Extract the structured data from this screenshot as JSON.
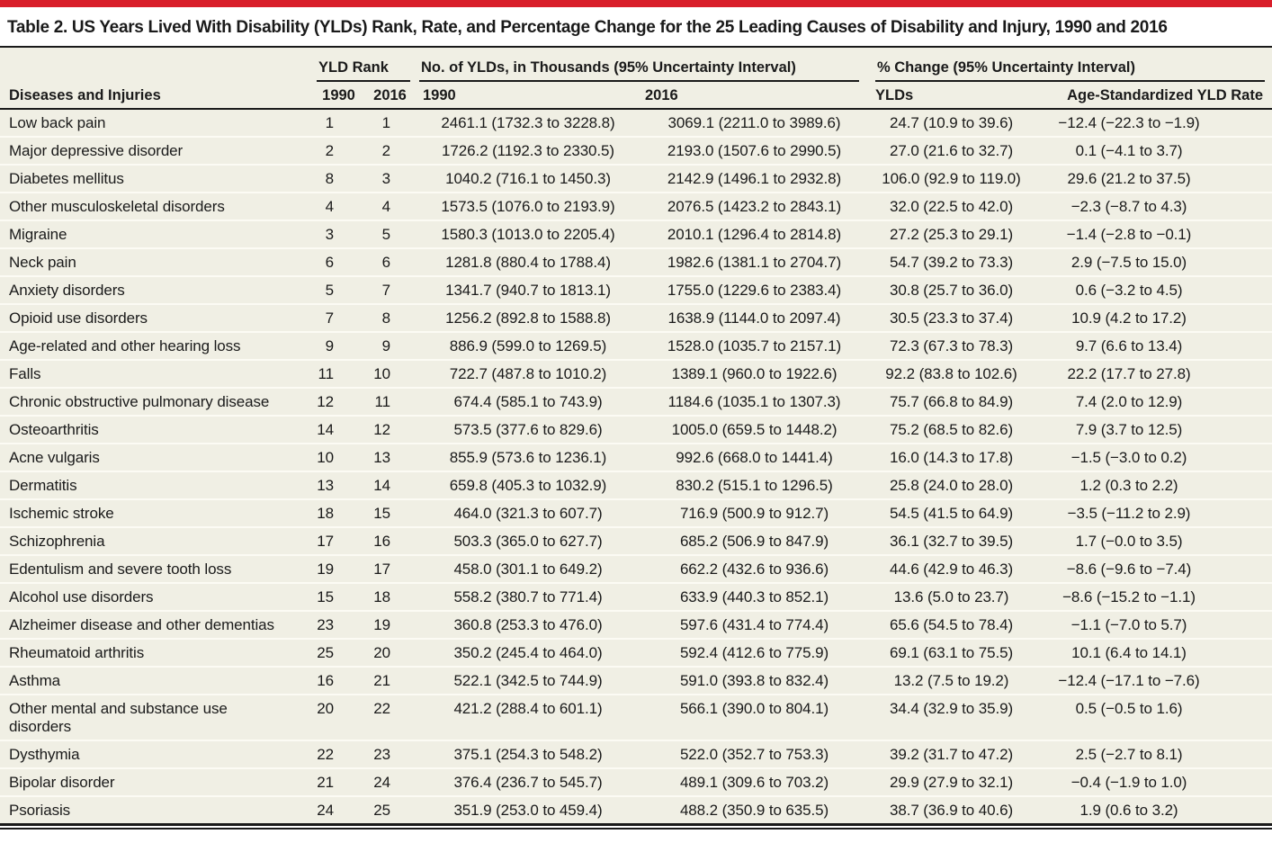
{
  "title": "Table 2. US Years Lived With Disability (YLDs) Rank, Rate, and Percentage Change for the 25 Leading Causes of Disability and Injury, 1990 and 2016",
  "colors": {
    "accent_red": "#d91e2a",
    "table_background": "#f0efe4",
    "rule_black": "#1a1a1a"
  },
  "header": {
    "col_disease": "Diseases and Injuries",
    "group_rank": "YLD Rank",
    "group_ylds": "No. of YLDs, in Thousands (95% Uncertainty Interval)",
    "group_pct": "% Change (95% Uncertainty Interval)",
    "sub_rank_1990": "1990",
    "sub_rank_2016": "2016",
    "sub_ylds_1990": "1990",
    "sub_ylds_2016": "2016",
    "sub_pct_ylds": "YLDs",
    "sub_pct_age": "Age-Standardized YLD Rate"
  },
  "rows": [
    {
      "name": "Low back pain",
      "rank1990": "1",
      "rank2016": "1",
      "ylds1990": "2461.1 (1732.3 to 3228.8)",
      "ylds2016": "3069.1 (2211.0 to 3989.6)",
      "pct_ylds": "24.7 (10.9 to 39.6)",
      "pct_age": "−12.4 (−22.3 to −1.9)"
    },
    {
      "name": "Major depressive disorder",
      "rank1990": "2",
      "rank2016": "2",
      "ylds1990": "1726.2 (1192.3 to 2330.5)",
      "ylds2016": "2193.0 (1507.6 to 2990.5)",
      "pct_ylds": "27.0 (21.6 to 32.7)",
      "pct_age": "0.1 (−4.1 to 3.7)"
    },
    {
      "name": "Diabetes mellitus",
      "rank1990": "8",
      "rank2016": "3",
      "ylds1990": "1040.2 (716.1 to 1450.3)",
      "ylds2016": "2142.9 (1496.1 to 2932.8)",
      "pct_ylds": "106.0 (92.9 to 119.0)",
      "pct_age": "29.6 (21.2 to 37.5)"
    },
    {
      "name": "Other musculoskeletal disorders",
      "rank1990": "4",
      "rank2016": "4",
      "ylds1990": "1573.5 (1076.0 to 2193.9)",
      "ylds2016": "2076.5 (1423.2 to 2843.1)",
      "pct_ylds": "32.0 (22.5 to 42.0)",
      "pct_age": "−2.3 (−8.7 to 4.3)"
    },
    {
      "name": "Migraine",
      "rank1990": "3",
      "rank2016": "5",
      "ylds1990": "1580.3 (1013.0 to 2205.4)",
      "ylds2016": "2010.1 (1296.4 to 2814.8)",
      "pct_ylds": "27.2 (25.3 to 29.1)",
      "pct_age": "−1.4 (−2.8 to −0.1)"
    },
    {
      "name": "Neck pain",
      "rank1990": "6",
      "rank2016": "6",
      "ylds1990": "1281.8 (880.4 to 1788.4)",
      "ylds2016": "1982.6 (1381.1 to 2704.7)",
      "pct_ylds": "54.7 (39.2 to 73.3)",
      "pct_age": "2.9 (−7.5 to 15.0)"
    },
    {
      "name": "Anxiety disorders",
      "rank1990": "5",
      "rank2016": "7",
      "ylds1990": "1341.7 (940.7 to 1813.1)",
      "ylds2016": "1755.0 (1229.6 to 2383.4)",
      "pct_ylds": "30.8 (25.7 to 36.0)",
      "pct_age": "0.6 (−3.2 to 4.5)"
    },
    {
      "name": "Opioid use disorders",
      "rank1990": "7",
      "rank2016": "8",
      "ylds1990": "1256.2 (892.8 to 1588.8)",
      "ylds2016": "1638.9 (1144.0 to 2097.4)",
      "pct_ylds": "30.5 (23.3 to 37.4)",
      "pct_age": "10.9 (4.2 to 17.2)"
    },
    {
      "name": "Age-related and other hearing loss",
      "rank1990": "9",
      "rank2016": "9",
      "ylds1990": "886.9 (599.0 to 1269.5)",
      "ylds2016": "1528.0 (1035.7 to 2157.1)",
      "pct_ylds": "72.3 (67.3 to 78.3)",
      "pct_age": "9.7 (6.6 to 13.4)"
    },
    {
      "name": "Falls",
      "rank1990": "11",
      "rank2016": "10",
      "ylds1990": "722.7 (487.8 to 1010.2)",
      "ylds2016": "1389.1 (960.0 to 1922.6)",
      "pct_ylds": "92.2 (83.8 to 102.6)",
      "pct_age": "22.2 (17.7 to 27.8)"
    },
    {
      "name": "Chronic obstructive pulmonary disease",
      "rank1990": "12",
      "rank2016": "11",
      "ylds1990": "674.4 (585.1 to 743.9)",
      "ylds2016": "1184.6 (1035.1 to 1307.3)",
      "pct_ylds": "75.7 (66.8 to 84.9)",
      "pct_age": "7.4 (2.0 to 12.9)"
    },
    {
      "name": "Osteoarthritis",
      "rank1990": "14",
      "rank2016": "12",
      "ylds1990": "573.5 (377.6 to 829.6)",
      "ylds2016": "1005.0 (659.5 to 1448.2)",
      "pct_ylds": "75.2 (68.5 to 82.6)",
      "pct_age": "7.9 (3.7 to 12.5)"
    },
    {
      "name": "Acne vulgaris",
      "rank1990": "10",
      "rank2016": "13",
      "ylds1990": "855.9 (573.6 to 1236.1)",
      "ylds2016": "992.6 (668.0 to 1441.4)",
      "pct_ylds": "16.0 (14.3 to 17.8)",
      "pct_age": "−1.5 (−3.0 to 0.2)"
    },
    {
      "name": "Dermatitis",
      "rank1990": "13",
      "rank2016": "14",
      "ylds1990": "659.8 (405.3 to 1032.9)",
      "ylds2016": "830.2 (515.1 to 1296.5)",
      "pct_ylds": "25.8 (24.0 to 28.0)",
      "pct_age": "1.2 (0.3 to 2.2)"
    },
    {
      "name": "Ischemic stroke",
      "rank1990": "18",
      "rank2016": "15",
      "ylds1990": "464.0 (321.3 to 607.7)",
      "ylds2016": "716.9 (500.9 to 912.7)",
      "pct_ylds": "54.5 (41.5 to 64.9)",
      "pct_age": "−3.5 (−11.2 to 2.9)"
    },
    {
      "name": "Schizophrenia",
      "rank1990": "17",
      "rank2016": "16",
      "ylds1990": "503.3 (365.0 to 627.7)",
      "ylds2016": "685.2 (506.9 to 847.9)",
      "pct_ylds": "36.1 (32.7 to 39.5)",
      "pct_age": "1.7 (−0.0 to 3.5)"
    },
    {
      "name": "Edentulism and severe tooth loss",
      "rank1990": "19",
      "rank2016": "17",
      "ylds1990": "458.0 (301.1 to 649.2)",
      "ylds2016": "662.2 (432.6 to 936.6)",
      "pct_ylds": "44.6 (42.9 to 46.3)",
      "pct_age": "−8.6 (−9.6 to −7.4)"
    },
    {
      "name": "Alcohol use disorders",
      "rank1990": "15",
      "rank2016": "18",
      "ylds1990": "558.2 (380.7 to 771.4)",
      "ylds2016": "633.9 (440.3 to 852.1)",
      "pct_ylds": "13.6 (5.0 to 23.7)",
      "pct_age": "−8.6 (−15.2 to −1.1)"
    },
    {
      "name": "Alzheimer disease and other dementias",
      "rank1990": "23",
      "rank2016": "19",
      "ylds1990": "360.8 (253.3 to 476.0)",
      "ylds2016": "597.6 (431.4 to 774.4)",
      "pct_ylds": "65.6 (54.5 to 78.4)",
      "pct_age": "−1.1 (−7.0 to 5.7)"
    },
    {
      "name": "Rheumatoid arthritis",
      "rank1990": "25",
      "rank2016": "20",
      "ylds1990": "350.2 (245.4 to 464.0)",
      "ylds2016": "592.4 (412.6 to 775.9)",
      "pct_ylds": "69.1 (63.1 to 75.5)",
      "pct_age": "10.1 (6.4 to 14.1)"
    },
    {
      "name": "Asthma",
      "rank1990": "16",
      "rank2016": "21",
      "ylds1990": "522.1 (342.5 to 744.9)",
      "ylds2016": "591.0 (393.8 to 832.4)",
      "pct_ylds": "13.2 (7.5 to 19.2)",
      "pct_age": "−12.4 (−17.1 to −7.6)"
    },
    {
      "name": "Other mental and substance use disorders",
      "rank1990": "20",
      "rank2016": "22",
      "ylds1990": "421.2 (288.4 to 601.1)",
      "ylds2016": "566.1 (390.0 to 804.1)",
      "pct_ylds": "34.4 (32.9 to 35.9)",
      "pct_age": "0.5 (−0.5 to 1.6)"
    },
    {
      "name": "Dysthymia",
      "rank1990": "22",
      "rank2016": "23",
      "ylds1990": "375.1 (254.3 to 548.2)",
      "ylds2016": "522.0 (352.7 to 753.3)",
      "pct_ylds": "39.2 (31.7 to 47.2)",
      "pct_age": "2.5 (−2.7 to 8.1)"
    },
    {
      "name": "Bipolar disorder",
      "rank1990": "21",
      "rank2016": "24",
      "ylds1990": "376.4 (236.7 to 545.7)",
      "ylds2016": "489.1 (309.6 to 703.2)",
      "pct_ylds": "29.9 (27.9 to 32.1)",
      "pct_age": "−0.4 (−1.9 to 1.0)"
    },
    {
      "name": "Psoriasis",
      "rank1990": "24",
      "rank2016": "25",
      "ylds1990": "351.9 (253.0 to 459.4)",
      "ylds2016": "488.2 (350.9 to 635.5)",
      "pct_ylds": "38.7 (36.9 to 40.6)",
      "pct_age": "1.9 (0.6 to 3.2)"
    }
  ]
}
